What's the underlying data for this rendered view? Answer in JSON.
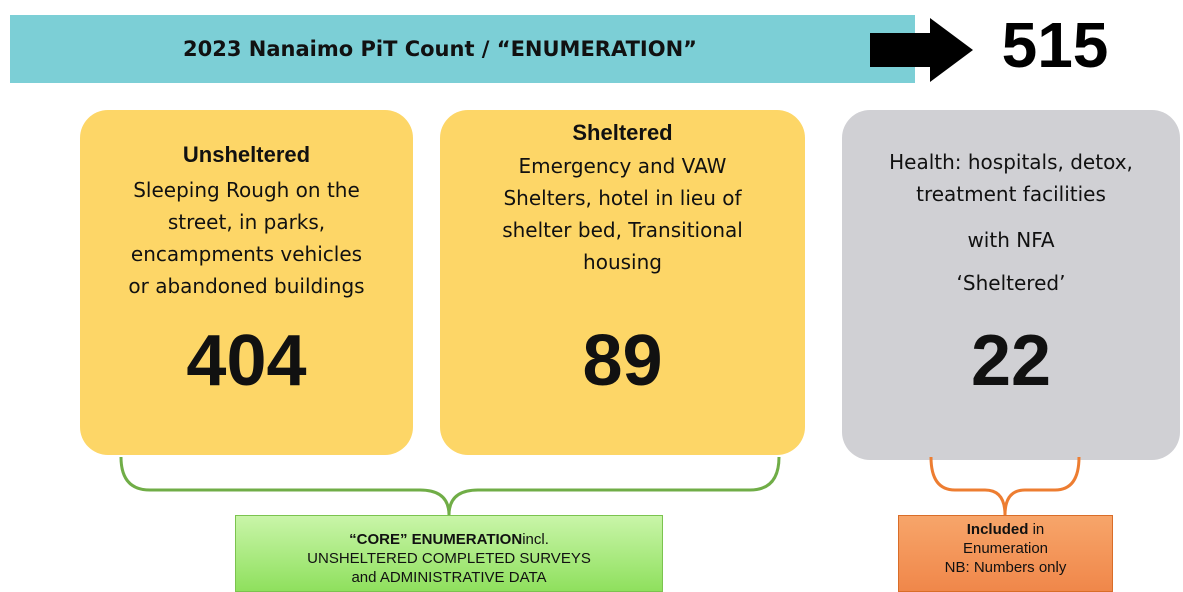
{
  "header": {
    "title": "2023 Nanaimo PiT Count / “ENUMERATION”",
    "total": 515
  },
  "cards": [
    {
      "title": "Unsheltered",
      "lines": [
        "Sleeping Rough on the",
        "street, in parks,",
        "encampments vehicles",
        "or abandoned buildings"
      ],
      "count": 404
    },
    {
      "title": "Sheltered",
      "lines": [
        "Emergency and VAW",
        "Shelters, hotel in lieu of",
        "shelter bed, Transitional",
        "housing"
      ],
      "count": 89
    },
    {
      "lines": [
        "Health: hospitals, detox,",
        "treatment facilities",
        "with NFA",
        "‘Sheltered’"
      ],
      "count": 22
    }
  ],
  "notes": [
    {
      "bold": "“CORE” ENUMERATION",
      "text": "incl.",
      "lines": [
        "UNSHELTERED COMPLETED SURVEYS",
        "and ADMINISTRATIVE DATA"
      ]
    },
    {
      "bold": "Included",
      "text": " in",
      "lines": [
        "Enumeration",
        "NB: Numbers only"
      ]
    }
  ]
}
